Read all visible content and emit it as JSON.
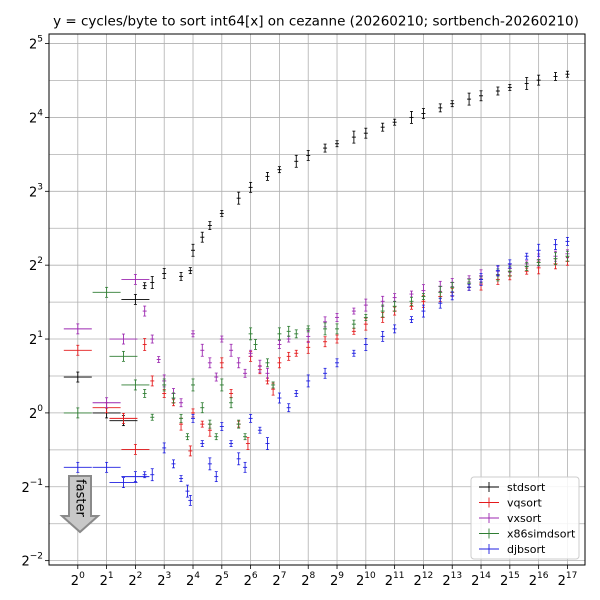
{
  "chart_data": {
    "type": "scatter",
    "title": "y = cycles/byte to sort int64[x] on cezanne (20260210; sortbench-20260210)",
    "xlabel": "",
    "ylabel": "",
    "x_scale": "log2",
    "y_scale": "log2",
    "xlim": [
      0.5,
      200000
    ],
    "ylim": [
      0.24,
      35
    ],
    "x_ticks": [
      {
        "base": "2",
        "exp": "0",
        "value": 1
      },
      {
        "base": "2",
        "exp": "1",
        "value": 2
      },
      {
        "base": "2",
        "exp": "2",
        "value": 4
      },
      {
        "base": "2",
        "exp": "3",
        "value": 8
      },
      {
        "base": "2",
        "exp": "4",
        "value": 16
      },
      {
        "base": "2",
        "exp": "5",
        "value": 32
      },
      {
        "base": "2",
        "exp": "6",
        "value": 64
      },
      {
        "base": "2",
        "exp": "7",
        "value": 128
      },
      {
        "base": "2",
        "exp": "8",
        "value": 256
      },
      {
        "base": "2",
        "exp": "9",
        "value": 512
      },
      {
        "base": "2",
        "exp": "10",
        "value": 1024
      },
      {
        "base": "2",
        "exp": "11",
        "value": 2048
      },
      {
        "base": "2",
        "exp": "12",
        "value": 4096
      },
      {
        "base": "2",
        "exp": "13",
        "value": 8192
      },
      {
        "base": "2",
        "exp": "14",
        "value": 16384
      },
      {
        "base": "2",
        "exp": "15",
        "value": 32768
      },
      {
        "base": "2",
        "exp": "16",
        "value": 65536
      },
      {
        "base": "2",
        "exp": "17",
        "value": 131072
      }
    ],
    "y_ticks": [
      {
        "base": "2",
        "exp": "−2",
        "value": 0.25
      },
      {
        "base": "2",
        "exp": "−1",
        "value": 0.5
      },
      {
        "base": "2",
        "exp": "0",
        "value": 1
      },
      {
        "base": "2",
        "exp": "1",
        "value": 2
      },
      {
        "base": "2",
        "exp": "2",
        "value": 4
      },
      {
        "base": "2",
        "exp": "3",
        "value": 8
      },
      {
        "base": "2",
        "exp": "4",
        "value": 16
      },
      {
        "base": "2",
        "exp": "5",
        "value": 32
      }
    ],
    "grid": true,
    "legend_position": "bottom-right",
    "annotation": {
      "text": "faster",
      "position": "bottom-left"
    },
    "series": [
      {
        "name": "stdsort",
        "color": "#000000",
        "points": [
          [
            1,
            1.4
          ],
          [
            2,
            1.0
          ],
          [
            3,
            0.93
          ],
          [
            4,
            2.9
          ],
          [
            5,
            3.3
          ],
          [
            6,
            3.4
          ],
          [
            8,
            3.7
          ],
          [
            12,
            3.6
          ],
          [
            15,
            3.8
          ],
          [
            16,
            4.6
          ],
          [
            20,
            5.2
          ],
          [
            24,
            5.8
          ],
          [
            32,
            6.5
          ],
          [
            48,
            7.5
          ],
          [
            64,
            8.3
          ],
          [
            96,
            9.2
          ],
          [
            128,
            9.8
          ],
          [
            192,
            10.6
          ],
          [
            256,
            11.2
          ],
          [
            384,
            12.0
          ],
          [
            512,
            12.5
          ],
          [
            768,
            13.3
          ],
          [
            1024,
            13.8
          ],
          [
            1536,
            14.6
          ],
          [
            2048,
            15.3
          ],
          [
            3072,
            16.0
          ],
          [
            4096,
            16.6
          ],
          [
            6144,
            17.5
          ],
          [
            8192,
            18.2
          ],
          [
            12288,
            19.0
          ],
          [
            16384,
            19.6
          ],
          [
            24576,
            20.5
          ],
          [
            32768,
            21.2
          ],
          [
            49152,
            22.0
          ],
          [
            65536,
            22.7
          ],
          [
            98304,
            23.5
          ],
          [
            131072,
            24.0
          ]
        ]
      },
      {
        "name": "vqsort",
        "color": "#e41a1c",
        "points": [
          [
            1,
            1.8
          ],
          [
            2,
            1.05
          ],
          [
            3,
            0.95
          ],
          [
            4,
            0.71
          ],
          [
            5,
            1.9
          ],
          [
            6,
            1.35
          ],
          [
            8,
            1.2
          ],
          [
            10,
            1.1
          ],
          [
            12,
            0.9
          ],
          [
            15,
            0.7
          ],
          [
            16,
            1.0
          ],
          [
            20,
            0.9
          ],
          [
            24,
            0.85
          ],
          [
            32,
            1.6
          ],
          [
            40,
            1.2
          ],
          [
            48,
            0.9
          ],
          [
            60,
            0.75
          ],
          [
            64,
            1.7
          ],
          [
            80,
            1.5
          ],
          [
            96,
            1.35
          ],
          [
            110,
            1.25
          ],
          [
            128,
            1.6
          ],
          [
            160,
            1.7
          ],
          [
            192,
            1.75
          ],
          [
            256,
            1.85
          ],
          [
            384,
            1.95
          ],
          [
            512,
            2.0
          ],
          [
            768,
            2.15
          ],
          [
            1024,
            2.3
          ],
          [
            1536,
            2.45
          ],
          [
            2048,
            2.6
          ],
          [
            3072,
            2.72
          ],
          [
            4096,
            2.85
          ],
          [
            6144,
            2.98
          ],
          [
            8192,
            3.1
          ],
          [
            12288,
            3.25
          ],
          [
            16384,
            3.35
          ],
          [
            24576,
            3.5
          ],
          [
            32768,
            3.62
          ],
          [
            49152,
            3.78
          ],
          [
            65536,
            3.9
          ],
          [
            98304,
            4.05
          ],
          [
            131072,
            4.15
          ]
        ]
      },
      {
        "name": "vxsort",
        "color": "#9c27b0",
        "points": [
          [
            1,
            2.2
          ],
          [
            2,
            1.1
          ],
          [
            3,
            2.0
          ],
          [
            4,
            3.5
          ],
          [
            5,
            2.6
          ],
          [
            6,
            2.0
          ],
          [
            7,
            1.65
          ],
          [
            8,
            1.35
          ],
          [
            10,
            1.2
          ],
          [
            12,
            1.1
          ],
          [
            16,
            2.1
          ],
          [
            20,
            1.8
          ],
          [
            24,
            1.6
          ],
          [
            28,
            1.4
          ],
          [
            32,
            2.0
          ],
          [
            40,
            1.8
          ],
          [
            48,
            1.6
          ],
          [
            56,
            1.45
          ],
          [
            64,
            1.75
          ],
          [
            80,
            1.55
          ],
          [
            96,
            1.45
          ],
          [
            128,
            1.9
          ],
          [
            160,
            2.0
          ],
          [
            256,
            2.05
          ],
          [
            384,
            2.35
          ],
          [
            512,
            2.45
          ],
          [
            768,
            2.6
          ],
          [
            1024,
            2.75
          ],
          [
            1536,
            2.85
          ],
          [
            2048,
            2.95
          ],
          [
            3072,
            3.05
          ],
          [
            4096,
            3.15
          ],
          [
            6144,
            3.28
          ],
          [
            8192,
            3.4
          ],
          [
            12288,
            3.52
          ],
          [
            16384,
            3.62
          ],
          [
            24576,
            3.78
          ],
          [
            32768,
            3.88
          ],
          [
            49152,
            4.05
          ],
          [
            65536,
            4.2
          ],
          [
            98304,
            4.35
          ],
          [
            131072,
            4.45
          ]
        ]
      },
      {
        "name": "x86simdsort",
        "color": "#2e7d32",
        "points": [
          [
            1,
            1.0
          ],
          [
            2,
            3.1
          ],
          [
            3,
            1.7
          ],
          [
            4,
            1.3
          ],
          [
            5,
            1.2
          ],
          [
            6,
            0.96
          ],
          [
            8,
            1.3
          ],
          [
            10,
            1.15
          ],
          [
            12,
            0.95
          ],
          [
            14,
            0.8
          ],
          [
            16,
            1.3
          ],
          [
            20,
            1.05
          ],
          [
            24,
            0.9
          ],
          [
            28,
            0.8
          ],
          [
            32,
            1.3
          ],
          [
            40,
            1.1
          ],
          [
            48,
            0.9
          ],
          [
            56,
            0.8
          ],
          [
            64,
            2.1
          ],
          [
            72,
            1.9
          ],
          [
            96,
            1.6
          ],
          [
            110,
            1.3
          ],
          [
            128,
            2.1
          ],
          [
            160,
            2.15
          ],
          [
            192,
            2.1
          ],
          [
            256,
            2.2
          ],
          [
            384,
            2.2
          ],
          [
            512,
            2.2
          ],
          [
            768,
            2.3
          ],
          [
            1024,
            2.45
          ],
          [
            1536,
            2.6
          ],
          [
            2048,
            2.72
          ],
          [
            3072,
            2.85
          ],
          [
            4096,
            2.98
          ],
          [
            6144,
            3.1
          ],
          [
            8192,
            3.25
          ],
          [
            12288,
            3.38
          ],
          [
            16384,
            3.5
          ],
          [
            24576,
            3.65
          ],
          [
            32768,
            3.78
          ],
          [
            49152,
            3.95
          ],
          [
            65536,
            4.1
          ],
          [
            98304,
            4.25
          ],
          [
            131072,
            4.35
          ]
        ]
      },
      {
        "name": "djbsort",
        "color": "#1f1fe0",
        "points": [
          [
            1,
            0.6
          ],
          [
            2,
            0.6
          ],
          [
            3,
            0.52
          ],
          [
            4,
            0.55
          ],
          [
            5,
            0.56
          ],
          [
            6,
            0.56
          ],
          [
            8,
            0.72
          ],
          [
            10,
            0.62
          ],
          [
            12,
            0.54
          ],
          [
            14,
            0.48
          ],
          [
            15,
            0.44
          ],
          [
            16,
            0.95
          ],
          [
            20,
            0.75
          ],
          [
            24,
            0.62
          ],
          [
            28,
            0.55
          ],
          [
            32,
            0.88
          ],
          [
            40,
            0.75
          ],
          [
            48,
            0.65
          ],
          [
            56,
            0.6
          ],
          [
            64,
            0.95
          ],
          [
            80,
            0.85
          ],
          [
            96,
            0.75
          ],
          [
            128,
            1.15
          ],
          [
            160,
            1.05
          ],
          [
            192,
            1.2
          ],
          [
            256,
            1.35
          ],
          [
            384,
            1.45
          ],
          [
            512,
            1.6
          ],
          [
            768,
            1.75
          ],
          [
            1024,
            1.9
          ],
          [
            1536,
            2.05
          ],
          [
            2048,
            2.2
          ],
          [
            3072,
            2.4
          ],
          [
            4096,
            2.6
          ],
          [
            6144,
            2.8
          ],
          [
            8192,
            3.0
          ],
          [
            12288,
            3.25
          ],
          [
            16384,
            3.5
          ],
          [
            24576,
            3.8
          ],
          [
            32768,
            4.05
          ],
          [
            49152,
            4.35
          ],
          [
            65536,
            4.6
          ],
          [
            98304,
            4.85
          ],
          [
            131072,
            5.0
          ]
        ]
      }
    ]
  }
}
